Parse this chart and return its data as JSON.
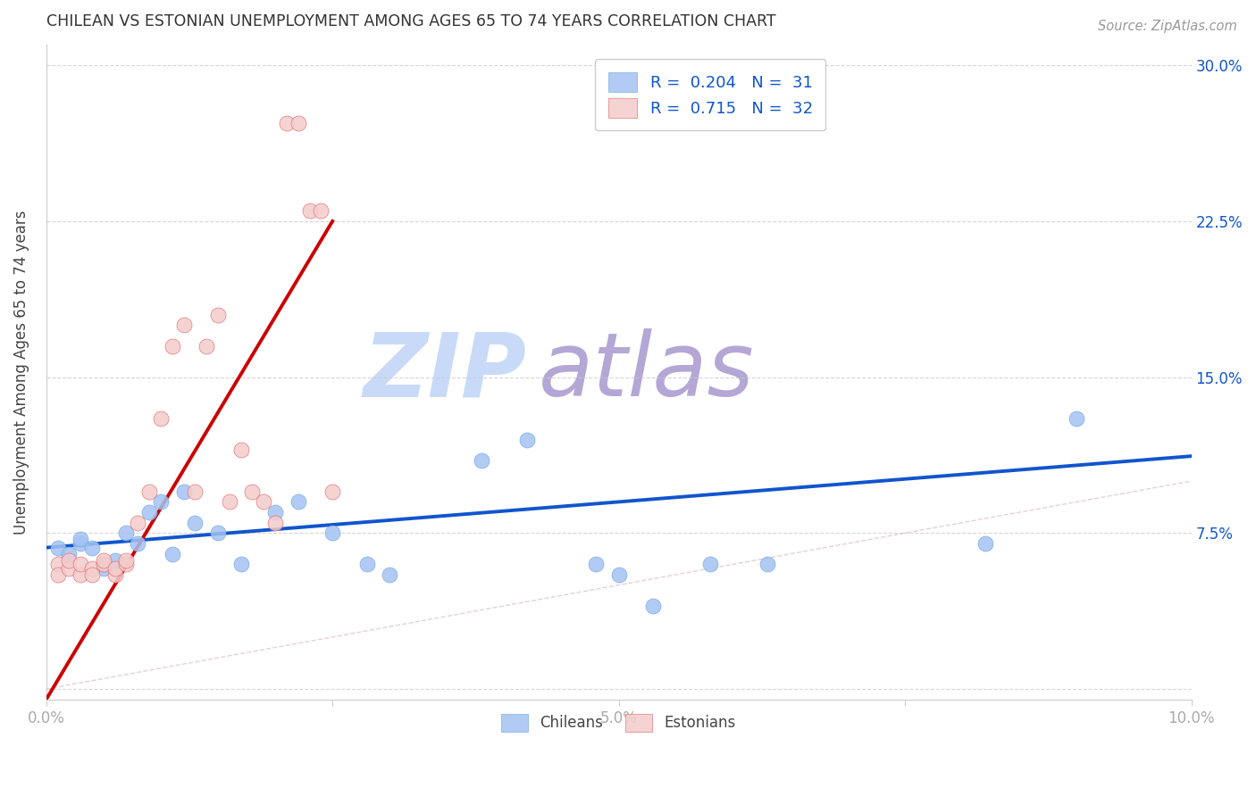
{
  "title": "CHILEAN VS ESTONIAN UNEMPLOYMENT AMONG AGES 65 TO 74 YEARS CORRELATION CHART",
  "source": "Source: ZipAtlas.com",
  "ylabel": "Unemployment Among Ages 65 to 74 years",
  "xlim": [
    0,
    0.1
  ],
  "ylim": [
    -0.005,
    0.31
  ],
  "xticks": [
    0.0,
    0.025,
    0.05,
    0.075,
    0.1
  ],
  "xticklabels": [
    "0.0%",
    "",
    "5.0%",
    "",
    "10.0%"
  ],
  "yticks": [
    0.0,
    0.075,
    0.15,
    0.225,
    0.3
  ],
  "yticklabels_right": [
    "",
    "7.5%",
    "15.0%",
    "22.5%",
    "30.0%"
  ],
  "chilean_R": "0.204",
  "chilean_N": "31",
  "estonian_R": "0.715",
  "estonian_N": "32",
  "blue_color": "#a4c2f4",
  "pink_color": "#f4cccc",
  "blue_scatter_edge": "#6fa8dc",
  "pink_scatter_edge": "#e06666",
  "blue_line_color": "#1155cc",
  "pink_line_color": "#cc0000",
  "legend_text_color": "#1155cc",
  "title_color": "#333333",
  "source_color": "#999999",
  "axis_label_color": "#444444",
  "tick_label_color": "#aaaaaa",
  "grid_color": "#cccccc",
  "watermark_zip_color": "#c9daf8",
  "watermark_atlas_color": "#b4a7d6",
  "chileans_x": [
    0.001,
    0.002,
    0.003,
    0.003,
    0.004,
    0.005,
    0.005,
    0.006,
    0.007,
    0.008,
    0.009,
    0.01,
    0.011,
    0.012,
    0.013,
    0.015,
    0.017,
    0.02,
    0.022,
    0.025,
    0.028,
    0.03,
    0.038,
    0.042,
    0.048,
    0.05,
    0.053,
    0.058,
    0.063,
    0.082,
    0.09
  ],
  "chileans_y": [
    0.068,
    0.065,
    0.07,
    0.072,
    0.068,
    0.06,
    0.058,
    0.062,
    0.075,
    0.07,
    0.085,
    0.09,
    0.065,
    0.095,
    0.08,
    0.075,
    0.06,
    0.085,
    0.09,
    0.075,
    0.06,
    0.055,
    0.11,
    0.12,
    0.06,
    0.055,
    0.04,
    0.06,
    0.06,
    0.07,
    0.13
  ],
  "estonians_x": [
    0.001,
    0.001,
    0.002,
    0.002,
    0.003,
    0.003,
    0.004,
    0.004,
    0.005,
    0.005,
    0.006,
    0.006,
    0.007,
    0.007,
    0.008,
    0.009,
    0.01,
    0.011,
    0.012,
    0.013,
    0.014,
    0.015,
    0.016,
    0.017,
    0.018,
    0.019,
    0.02,
    0.021,
    0.022,
    0.023,
    0.024,
    0.025
  ],
  "estonians_y": [
    0.06,
    0.055,
    0.058,
    0.062,
    0.055,
    0.06,
    0.058,
    0.055,
    0.06,
    0.062,
    0.055,
    0.058,
    0.06,
    0.062,
    0.08,
    0.095,
    0.13,
    0.165,
    0.175,
    0.095,
    0.165,
    0.18,
    0.09,
    0.115,
    0.095,
    0.09,
    0.08,
    0.272,
    0.272,
    0.23,
    0.23,
    0.095
  ],
  "blue_trend_x": [
    0.0,
    0.1
  ],
  "blue_trend_y": [
    0.068,
    0.112
  ],
  "pink_trend_x": [
    0.0,
    0.025
  ],
  "pink_trend_y": [
    -0.005,
    0.225
  ],
  "ref_line_x": [
    0.0,
    0.1
  ],
  "ref_line_y": [
    0.0,
    0.1
  ]
}
